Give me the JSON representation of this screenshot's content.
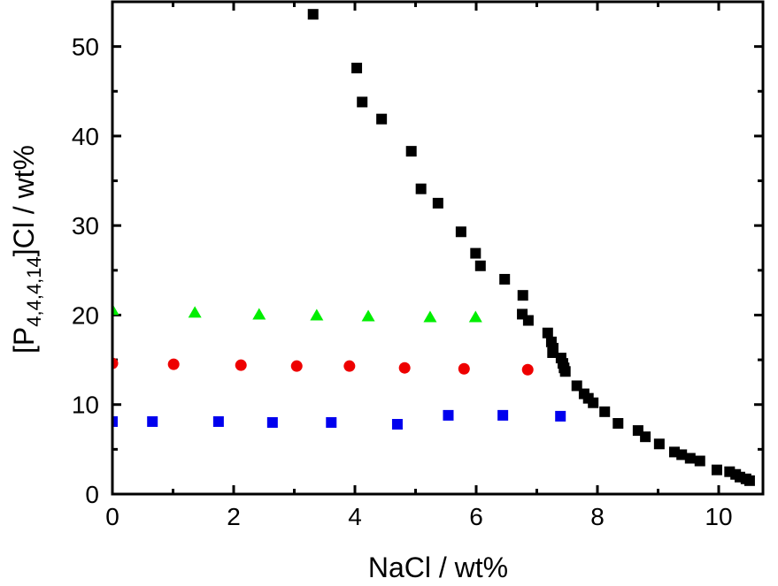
{
  "chart_data": {
    "type": "scatter",
    "xlabel": "NaCl / wt%",
    "ylabel": {
      "prefix": "[P",
      "subscript": "4,4,4,14",
      "suffix": "]Cl / wt%"
    },
    "xlim": [
      0,
      10.73
    ],
    "ylim": [
      0,
      55
    ],
    "xticks": [
      "0",
      "2",
      "4",
      "6",
      "8",
      "10"
    ],
    "yticks": [
      "0",
      "10",
      "20",
      "30",
      "40",
      "50"
    ],
    "grid": false,
    "series": [
      {
        "marker": "square",
        "color": "#000000",
        "x": [
          3.31,
          4.03,
          4.12,
          4.44,
          4.93,
          5.09,
          5.37,
          5.75,
          5.99,
          6.07,
          6.47,
          6.77,
          6.76,
          6.86,
          7.18,
          7.24,
          7.27,
          7.26,
          7.4,
          7.43,
          7.45,
          7.47,
          7.66,
          7.78,
          7.85,
          7.93,
          8.12,
          8.34,
          8.67,
          8.79,
          9.02,
          9.27,
          9.39,
          9.53,
          9.69,
          9.97,
          10.18,
          10.28,
          10.35,
          10.45,
          10.51
        ],
        "y": [
          53.6,
          47.6,
          43.8,
          41.9,
          38.3,
          34.1,
          32.5,
          29.3,
          26.9,
          25.5,
          24.0,
          22.2,
          20.1,
          19.4,
          18.0,
          17.0,
          16.3,
          15.8,
          15.2,
          14.6,
          14.1,
          13.7,
          12.1,
          11.2,
          10.7,
          10.2,
          9.2,
          7.9,
          7.1,
          6.4,
          5.6,
          4.7,
          4.4,
          4.0,
          3.7,
          2.7,
          2.5,
          2.2,
          1.9,
          1.7,
          1.5
        ]
      },
      {
        "marker": "triangle",
        "color": "#00ee00",
        "x": [
          0,
          1.36,
          2.42,
          3.37,
          4.22,
          5.24,
          5.99
        ],
        "y": [
          20.6,
          20.3,
          20.1,
          20.0,
          19.9,
          19.8,
          19.8
        ]
      },
      {
        "marker": "circle",
        "color": "#ee0000",
        "x": [
          0,
          1.01,
          2.12,
          3.04,
          3.91,
          4.82,
          5.8,
          6.85
        ],
        "y": [
          14.6,
          14.5,
          14.4,
          14.3,
          14.3,
          14.1,
          14.0,
          13.9
        ]
      },
      {
        "marker": "square",
        "color": "#0000ee",
        "x": [
          0,
          0.66,
          1.75,
          2.64,
          3.61,
          4.7,
          5.54,
          6.44,
          7.39
        ],
        "y": [
          8.1,
          8.1,
          8.1,
          8.0,
          8.0,
          7.8,
          8.8,
          8.8,
          8.7
        ]
      }
    ]
  }
}
